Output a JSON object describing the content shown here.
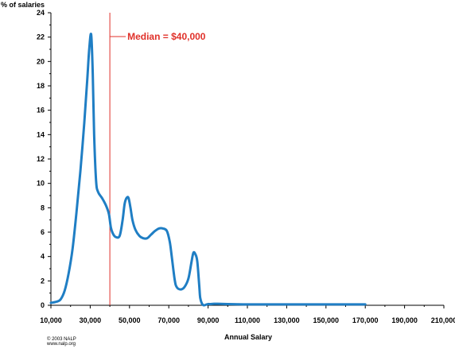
{
  "chart_data": {
    "type": "line",
    "ylabel": "% of salaries",
    "xlabel": "Annual Salary",
    "xlim": [
      10000,
      210000
    ],
    "ylim": [
      0,
      24
    ],
    "x_tick_labels": [
      "10,000",
      "30,000",
      "50,000",
      "70,000",
      "90,000",
      "110,000",
      "130,000",
      "150,000",
      "170,000",
      "190,000",
      "210,000"
    ],
    "y_tick_labels": [
      "0",
      "2",
      "4",
      "6",
      "8",
      "10",
      "12",
      "14",
      "16",
      "18",
      "20",
      "22",
      "24"
    ],
    "annotation": {
      "label": "Median = $40,000",
      "x": 40000
    },
    "line_color": "#1f7ec4",
    "annotation_color": "#e0312a",
    "series": [
      {
        "x": [
          10000,
          13000,
          15000,
          17000,
          19000,
          21000,
          23000,
          25000,
          27000,
          28500,
          29500,
          30500,
          31300,
          32000,
          33000,
          34000,
          36000,
          38000,
          39500,
          40500,
          41500,
          43000,
          45000,
          46500,
          47500,
          48500,
          49500,
          50500,
          51500,
          53000,
          55000,
          57000,
          59000,
          61000,
          63000,
          65000,
          67000,
          69000,
          70500,
          71500,
          73000,
          74000,
          76000,
          78000,
          80000,
          81500,
          82500,
          83500,
          84500,
          85500,
          86000,
          87000,
          88000,
          89000,
          90000,
          91000,
          93000,
          95000,
          100000,
          105000,
          110000,
          120000,
          130000,
          140000,
          150000,
          160000,
          170000
        ],
        "y": [
          0.2,
          0.3,
          0.5,
          1.2,
          2.6,
          4.6,
          7.6,
          11.0,
          15.0,
          18.5,
          21.0,
          22.2,
          19.0,
          14.0,
          10.2,
          9.3,
          8.8,
          8.2,
          7.5,
          6.4,
          5.9,
          5.6,
          5.7,
          7.0,
          8.3,
          8.8,
          8.8,
          8.0,
          7.0,
          6.2,
          5.7,
          5.5,
          5.5,
          5.8,
          6.1,
          6.3,
          6.3,
          6.1,
          5.2,
          4.0,
          2.1,
          1.5,
          1.3,
          1.5,
          2.2,
          3.5,
          4.3,
          4.2,
          3.6,
          1.6,
          0.6,
          0.1,
          0.0,
          0.05,
          0.1,
          0.1,
          0.12,
          0.12,
          0.1,
          0.08,
          0.07,
          0.07,
          0.07,
          0.07,
          0.07,
          0.07,
          0.07
        ]
      }
    ]
  },
  "footer": {
    "copyright_line1": "© 2003 NALP",
    "copyright_line2": "www.nalp.org"
  }
}
